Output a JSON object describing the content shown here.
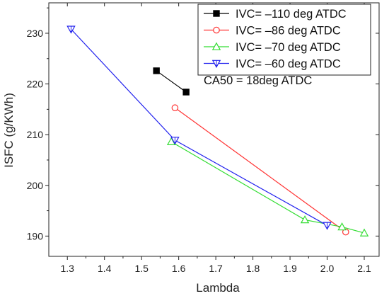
{
  "chart_data": {
    "type": "line",
    "title": "",
    "xlabel": "Lambda",
    "ylabel": "ISFC (g/KWh)",
    "xlim": [
      1.25,
      2.14
    ],
    "ylim": [
      186,
      236
    ],
    "xticks": [
      "1.3",
      "1.4",
      "1.5",
      "1.6",
      "1.7",
      "1.8",
      "1.9",
      "2.0",
      "2.1"
    ],
    "xtick_values": [
      1.3,
      1.4,
      1.5,
      1.6,
      1.7,
      1.8,
      1.9,
      2.0,
      2.1
    ],
    "yticks": [
      "190",
      "200",
      "210",
      "220",
      "230"
    ],
    "ytick_values": [
      190,
      200,
      210,
      220,
      230
    ],
    "grid": false,
    "legend_position": "top-right",
    "legend_note": "CA50 = 18deg ATDC",
    "series": [
      {
        "name": "IVC= –110 deg ATDC",
        "color": "#000000",
        "marker": "square",
        "x": [
          1.54,
          1.62
        ],
        "y": [
          222.6,
          218.4
        ]
      },
      {
        "name": "IVC= –86 deg ATDC",
        "color": "#ff3333",
        "marker": "circle",
        "x": [
          1.59,
          2.05
        ],
        "y": [
          215.3,
          190.8
        ]
      },
      {
        "name": "IVC= –70 deg ATDC",
        "color": "#33dd33",
        "marker": "triangle",
        "x": [
          1.58,
          1.94,
          2.04,
          2.1
        ],
        "y": [
          208.6,
          193.2,
          191.8,
          190.6
        ]
      },
      {
        "name": "IVC= –60 deg ATDC",
        "color": "#2222ee",
        "marker": "triangle-down",
        "x": [
          1.31,
          1.59,
          2.0
        ],
        "y": [
          230.8,
          208.9,
          192.1
        ]
      }
    ]
  }
}
